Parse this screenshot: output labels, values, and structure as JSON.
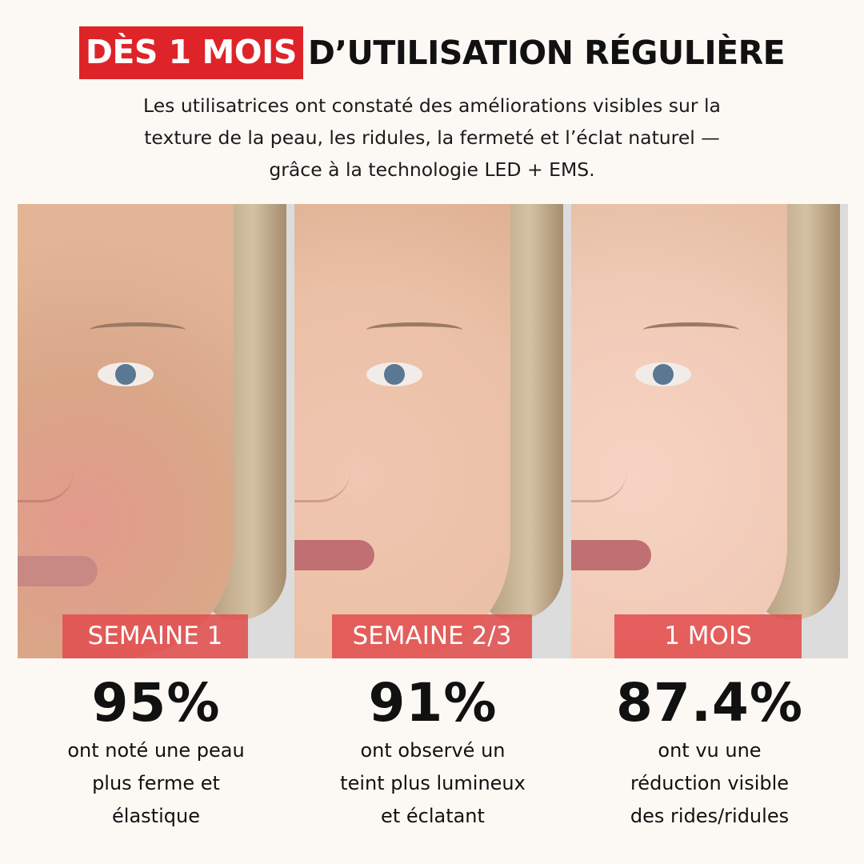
{
  "headline": {
    "highlight": "DÈS 1 MOIS",
    "rest": "D’UTILISATION RÉGULIÈRE"
  },
  "subtitle": [
    "Les utilisatrices ont constaté des améliorations visibles sur la",
    "texture de la peau, les ridules, la fermeté et l’éclat naturel —",
    "grâce à la technologie LED + EMS."
  ],
  "colors": {
    "accent_red": "#de2428",
    "label_red": "#e15050",
    "background": "#fcf9f4"
  },
  "panels": [
    {
      "label": "SEMAINE 1",
      "percent": "95%",
      "description": [
        "ont noté une peau",
        "plus ferme et",
        "élastique"
      ]
    },
    {
      "label": "SEMAINE 2/3",
      "percent": "91%",
      "description": [
        "ont observé un",
        "teint plus lumineux",
        "et éclatant"
      ]
    },
    {
      "label": "1 MOIS",
      "percent": "87.4%",
      "description": [
        "ont vu une",
        "réduction visible",
        "des rides/ridules"
      ]
    }
  ]
}
